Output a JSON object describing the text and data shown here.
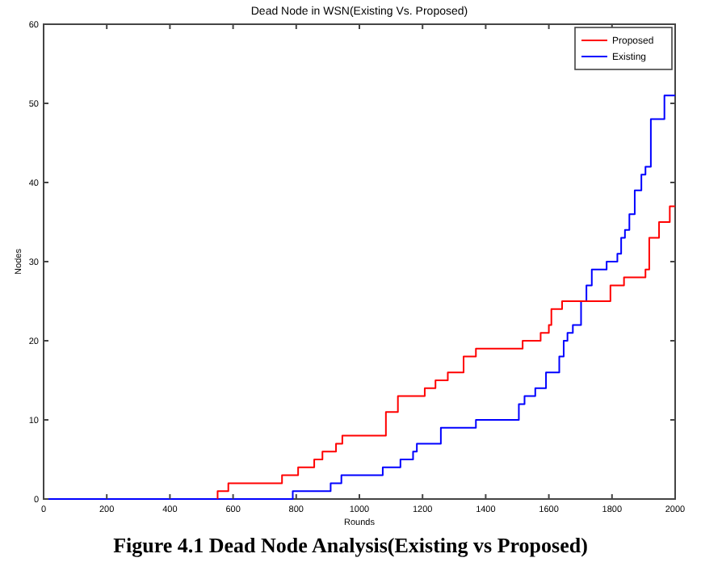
{
  "chart_data": {
    "type": "step",
    "title": "Dead Node in WSN(Existing Vs. Proposed)",
    "xlabel": "Rounds",
    "ylabel": "Nodes",
    "xlim": [
      0,
      2000
    ],
    "xticks": [
      0,
      200,
      400,
      600,
      800,
      1000,
      1200,
      1400,
      1600,
      1800,
      2000
    ],
    "ylim": [
      0,
      60
    ],
    "yticks": [
      0,
      10,
      20,
      30,
      40,
      50,
      60
    ],
    "grid": false,
    "legend": "top right",
    "annotations": [
      "Figure 4.1 Dead Node Analysis(Existing vs Proposed)"
    ],
    "series": [
      {
        "name": "Proposed",
        "color": "#ff0000",
        "x": [
          551,
          551,
          585,
          755,
          806,
          857,
          883,
          926,
          946,
          1084,
          1122,
          1207,
          1241,
          1280,
          1330,
          1369,
          1517,
          1574,
          1600,
          1608,
          1642,
          1795,
          1838,
          1906,
          1918,
          1949,
          1983,
          2000
        ],
        "values": [
          0,
          1,
          2,
          3,
          4,
          5,
          6,
          7,
          8,
          11,
          13,
          14,
          15,
          16,
          18,
          19,
          20,
          21,
          22,
          24,
          25,
          27,
          28,
          29,
          33,
          35,
          37,
          37
        ]
      },
      {
        "name": "Existing",
        "color": "#0000ff",
        "x": [
          0,
          789,
          909,
          943,
          1074,
          1130,
          1170,
          1182,
          1258,
          1369,
          1505,
          1523,
          1557,
          1591,
          1633,
          1647,
          1659,
          1676,
          1702,
          1719,
          1736,
          1783,
          1817,
          1829,
          1841,
          1855,
          1872,
          1893,
          1906,
          1923,
          1966,
          2000
        ],
        "values": [
          0,
          1,
          2,
          3,
          4,
          5,
          6,
          7,
          9,
          10,
          12,
          13,
          14,
          16,
          18,
          20,
          21,
          22,
          25,
          27,
          29,
          30,
          31,
          33,
          34,
          36,
          39,
          41,
          42,
          48,
          51,
          51
        ]
      }
    ]
  }
}
